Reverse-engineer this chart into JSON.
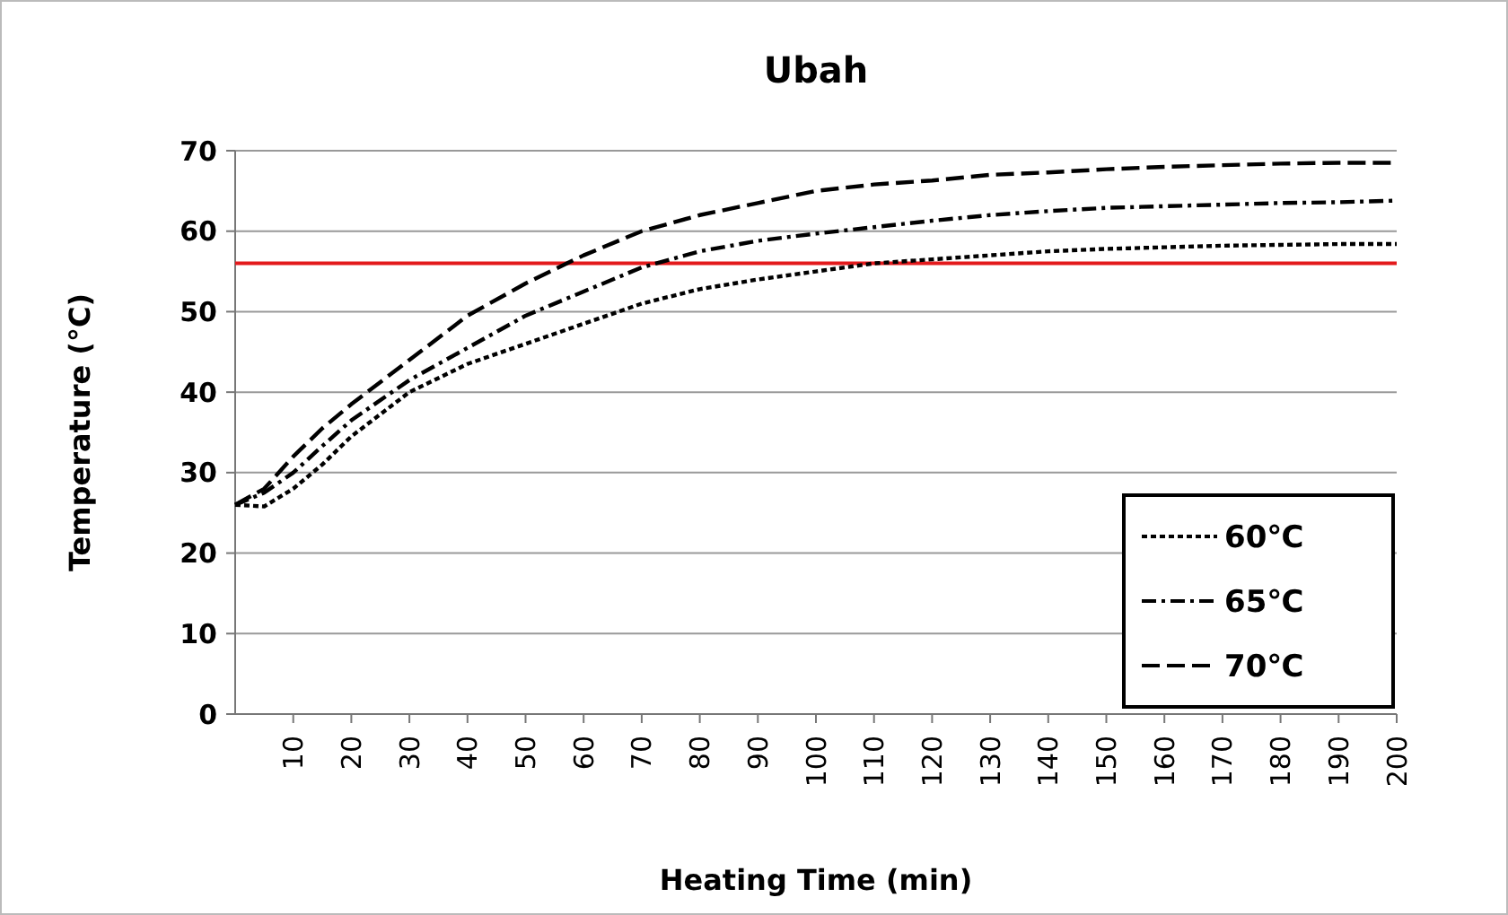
{
  "chart_data": {
    "type": "line",
    "title": "Ubah",
    "xlabel": "Heating Time (min)",
    "ylabel": "Temperature (°C)",
    "x": [
      0,
      5,
      10,
      15,
      20,
      30,
      40,
      50,
      60,
      70,
      80,
      90,
      100,
      110,
      120,
      130,
      140,
      150,
      160,
      170,
      180,
      190,
      200
    ],
    "series": [
      {
        "name": "60℃",
        "color": "#000000",
        "line_style": "dotted",
        "values": [
          26,
          25.8,
          28,
          31,
          34.5,
          40,
          43.5,
          46,
          48.5,
          51,
          52.8,
          54,
          55,
          56,
          56.5,
          57,
          57.5,
          57.8,
          58,
          58.2,
          58.3,
          58.4,
          58.4
        ]
      },
      {
        "name": "65℃",
        "color": "#000000",
        "line_style": "dashdot",
        "values": [
          26,
          27.5,
          30,
          33.3,
          36.5,
          41.5,
          45.5,
          49.5,
          52.5,
          55.5,
          57.5,
          58.8,
          59.7,
          60.5,
          61.3,
          62,
          62.5,
          62.9,
          63.1,
          63.3,
          63.5,
          63.6,
          63.8
        ]
      },
      {
        "name": "70℃",
        "color": "#000000",
        "line_style": "dashed",
        "values": [
          26,
          28,
          32,
          35.5,
          38.5,
          44,
          49.5,
          53.5,
          57,
          60,
          62,
          63.5,
          65,
          65.8,
          66.3,
          67,
          67.3,
          67.7,
          68,
          68.2,
          68.4,
          68.5,
          68.5
        ]
      }
    ],
    "xlim": [
      0,
      200
    ],
    "xticks": [
      10,
      20,
      30,
      40,
      50,
      60,
      70,
      80,
      90,
      100,
      110,
      120,
      130,
      140,
      150,
      160,
      170,
      180,
      190,
      200
    ],
    "ylim": [
      0,
      70
    ],
    "yticks": [
      0,
      10,
      20,
      30,
      40,
      50,
      60,
      70
    ],
    "ref_lines": [
      {
        "axis": "y",
        "value": 56,
        "color": "#e31a1c"
      }
    ],
    "grid": "y",
    "legend": "bottom right",
    "marker": "none"
  }
}
